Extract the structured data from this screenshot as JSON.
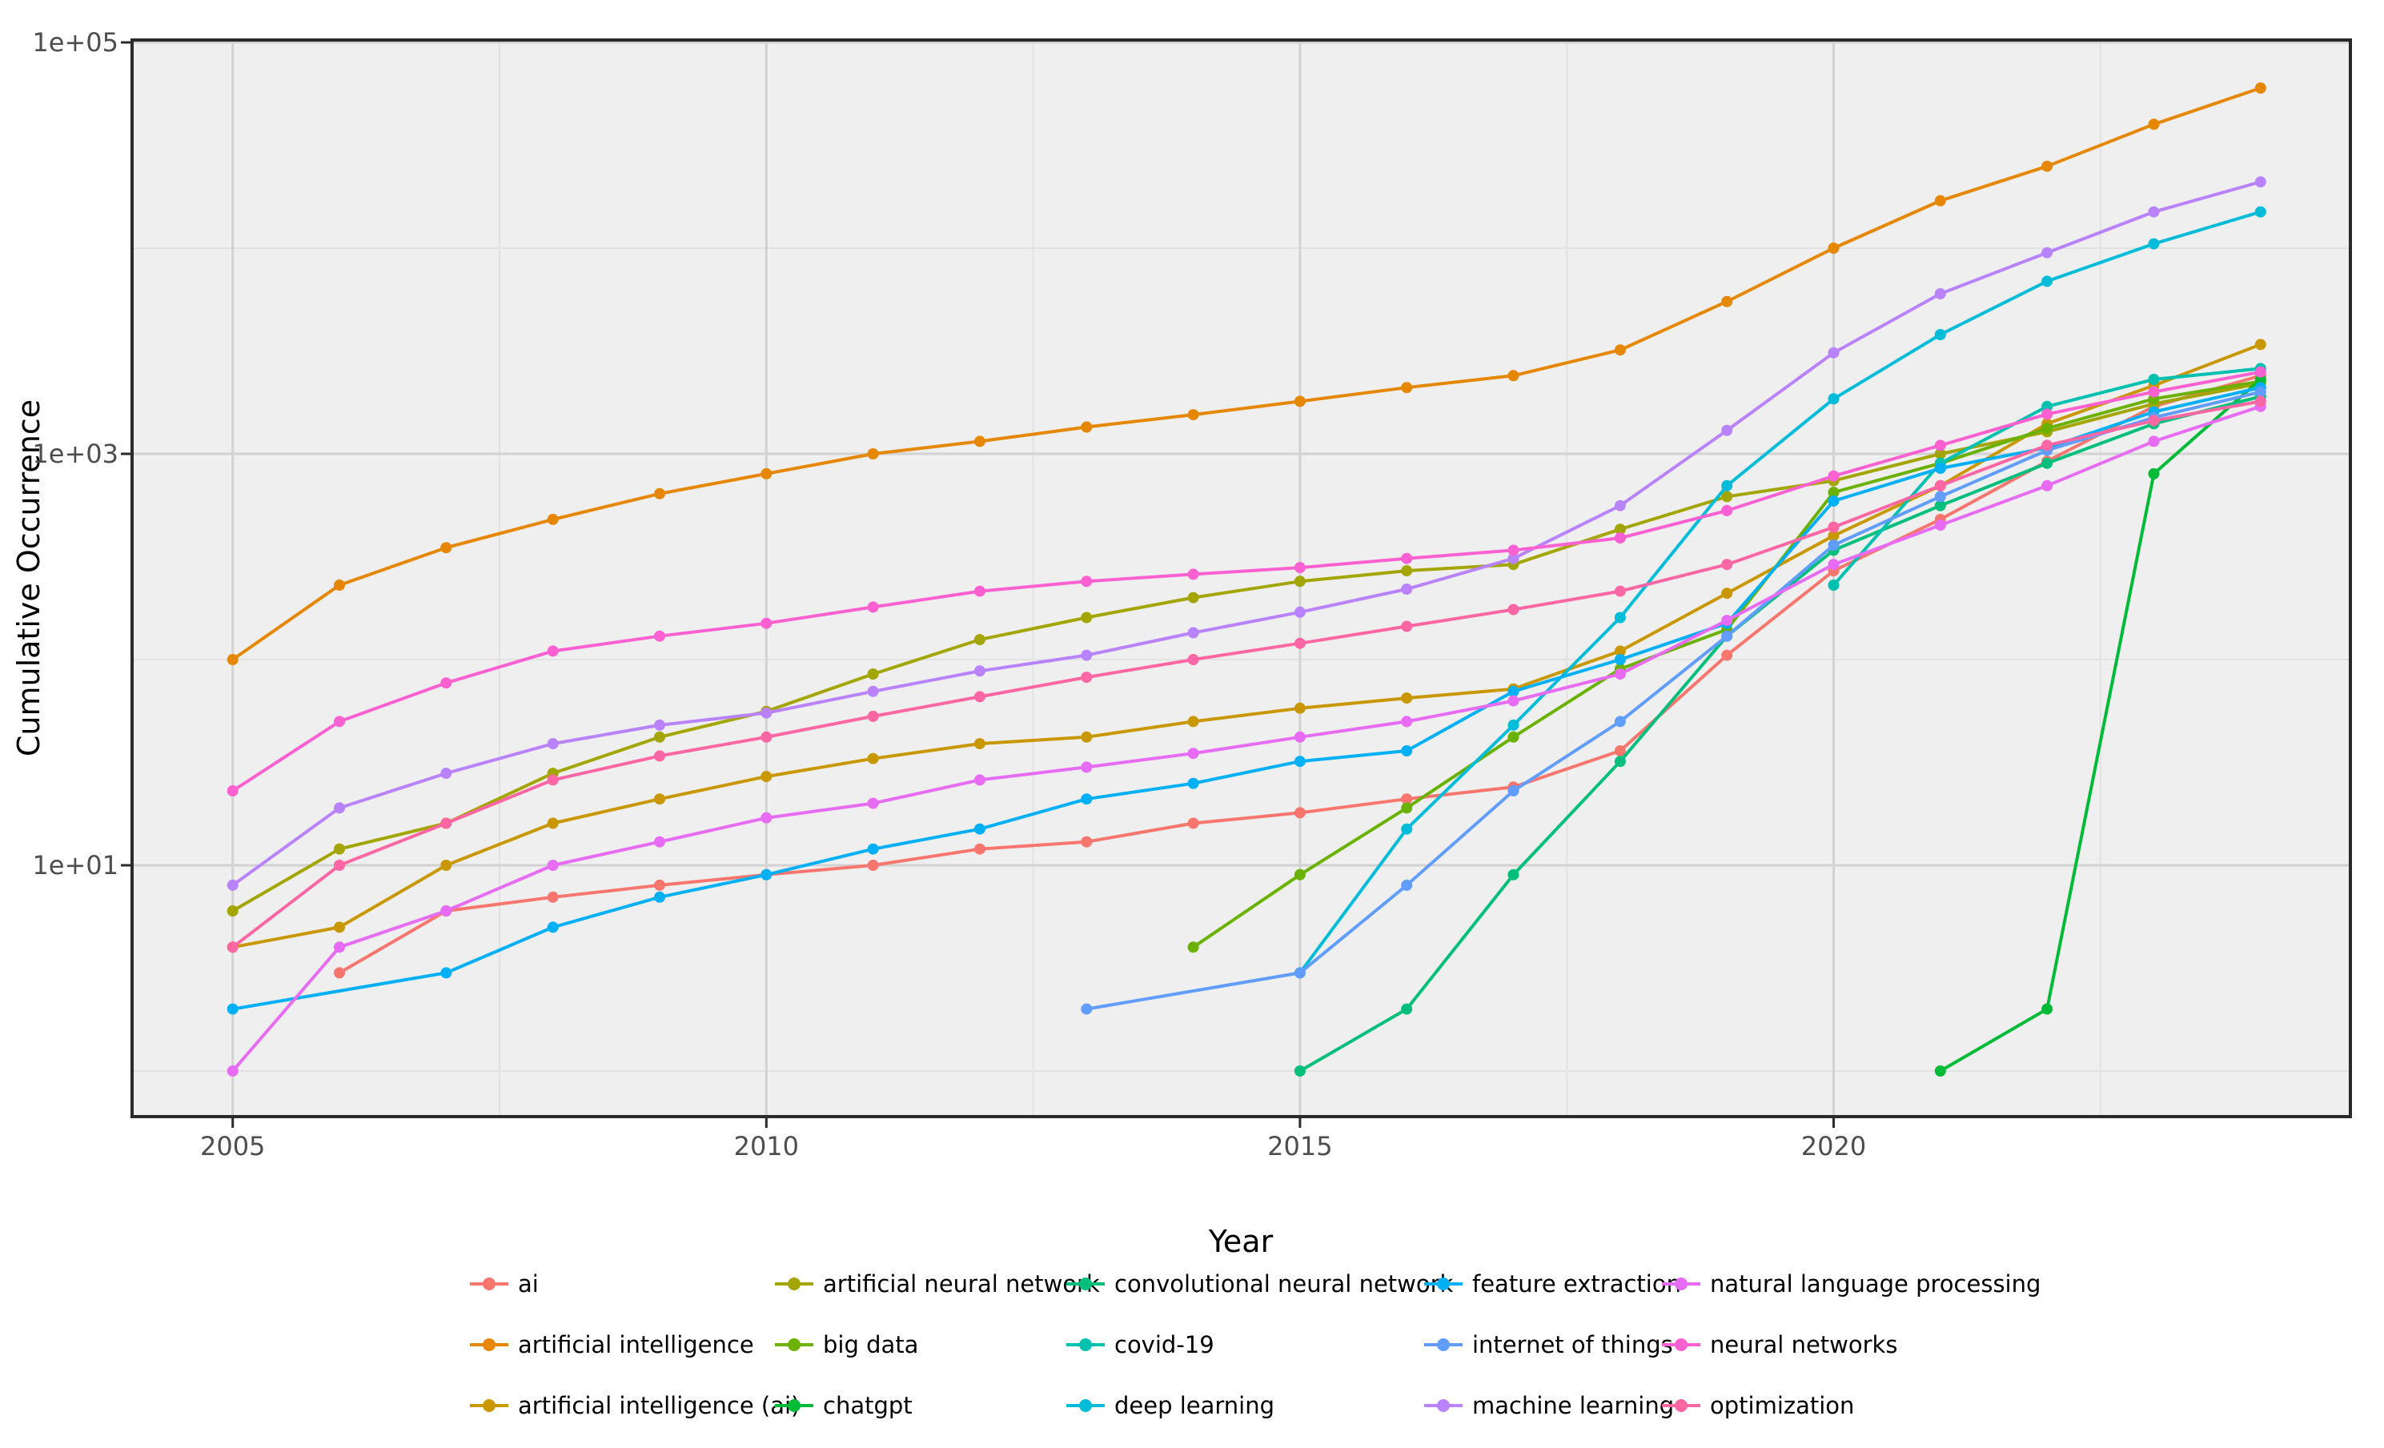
{
  "page": {
    "background": "#FFFFFF"
  },
  "chart_data": {
    "type": "line",
    "title": "",
    "xlabel": "Year",
    "ylabel": "Cumulative Occurrence",
    "y_scale": "log10",
    "grid": true,
    "legend_position": "bottom",
    "panel_background": "#EFEFEF",
    "grid_major_color": "#D2D2D2",
    "grid_minor_color": "#E2E2E2",
    "axis_color": "#2A2A2A",
    "tick_label_color": "#4D4D4D",
    "xlim": [
      2004.1,
      2024.95
    ],
    "x_ticks": [
      {
        "label": "2005",
        "value": 2005
      },
      {
        "label": "2010",
        "value": 2010
      },
      {
        "label": "2015",
        "value": 2015
      },
      {
        "label": "2020",
        "value": 2020
      }
    ],
    "x_minor_values": [
      2007.5,
      2012.5,
      2017.5,
      2022.5
    ],
    "y_ticks": [
      {
        "label": "1e+05",
        "value": 100000
      },
      {
        "label": "1e+03",
        "value": 1000
      },
      {
        "label": "1e+01",
        "value": 10
      }
    ],
    "y_minor_values": [
      10000,
      100,
      1
    ],
    "series": [
      {
        "name": "ai",
        "color": "#F8766D",
        "points": [
          [
            2006,
            3
          ],
          [
            2007,
            6
          ],
          [
            2008,
            7
          ],
          [
            2009,
            8
          ],
          [
            2010,
            9
          ],
          [
            2011,
            10
          ],
          [
            2012,
            12
          ],
          [
            2013,
            13
          ],
          [
            2014,
            16
          ],
          [
            2015,
            18
          ],
          [
            2016,
            21
          ],
          [
            2017,
            24
          ],
          [
            2018,
            36
          ],
          [
            2019,
            105
          ],
          [
            2020,
            270
          ],
          [
            2021,
            480
          ],
          [
            2022,
            920
          ],
          [
            2023,
            1700
          ],
          [
            2024,
            2400
          ]
        ]
      },
      {
        "name": "artificial intelligence",
        "color": "#E58700",
        "points": [
          [
            2005,
            100
          ],
          [
            2006,
            230
          ],
          [
            2007,
            350
          ],
          [
            2008,
            480
          ],
          [
            2009,
            640
          ],
          [
            2010,
            800
          ],
          [
            2011,
            1000
          ],
          [
            2012,
            1150
          ],
          [
            2013,
            1350
          ],
          [
            2014,
            1550
          ],
          [
            2015,
            1800
          ],
          [
            2016,
            2100
          ],
          [
            2017,
            2400
          ],
          [
            2018,
            3200
          ],
          [
            2019,
            5500
          ],
          [
            2020,
            10000
          ],
          [
            2021,
            17000
          ],
          [
            2022,
            25000
          ],
          [
            2023,
            40000
          ],
          [
            2024,
            60000
          ]
        ]
      },
      {
        "name": "artificial intelligence (ai)",
        "color": "#C99800",
        "points": [
          [
            2005,
            4
          ],
          [
            2006,
            5
          ],
          [
            2007,
            10
          ],
          [
            2008,
            16
          ],
          [
            2009,
            21
          ],
          [
            2010,
            27
          ],
          [
            2011,
            33
          ],
          [
            2012,
            39
          ],
          [
            2013,
            42
          ],
          [
            2014,
            50
          ],
          [
            2015,
            58
          ],
          [
            2016,
            65
          ],
          [
            2017,
            72
          ],
          [
            2018,
            110
          ],
          [
            2019,
            210
          ],
          [
            2020,
            400
          ],
          [
            2021,
            700
          ],
          [
            2022,
            1400
          ],
          [
            2023,
            2150
          ],
          [
            2024,
            3400
          ]
        ]
      },
      {
        "name": "artificial neural network",
        "color": "#A3A500",
        "points": [
          [
            2005,
            6
          ],
          [
            2006,
            12
          ],
          [
            2007,
            16
          ],
          [
            2008,
            28
          ],
          [
            2009,
            42
          ],
          [
            2010,
            56
          ],
          [
            2011,
            85
          ],
          [
            2012,
            125
          ],
          [
            2013,
            160
          ],
          [
            2014,
            200
          ],
          [
            2015,
            240
          ],
          [
            2016,
            270
          ],
          [
            2017,
            290
          ],
          [
            2018,
            430
          ],
          [
            2019,
            620
          ],
          [
            2020,
            740
          ],
          [
            2021,
            1000
          ],
          [
            2022,
            1280
          ],
          [
            2023,
            1750
          ],
          [
            2024,
            2200
          ]
        ]
      },
      {
        "name": "big data",
        "color": "#6BB100",
        "points": [
          [
            2014,
            4
          ],
          [
            2015,
            9
          ],
          [
            2016,
            19
          ],
          [
            2017,
            42
          ],
          [
            2018,
            90
          ],
          [
            2019,
            140
          ],
          [
            2020,
            650
          ],
          [
            2021,
            900
          ],
          [
            2022,
            1330
          ],
          [
            2023,
            1850
          ],
          [
            2024,
            2250
          ]
        ]
      },
      {
        "name": "chatgpt",
        "color": "#00BA38",
        "points": [
          [
            2021,
            1
          ],
          [
            2022,
            2
          ],
          [
            2023,
            800
          ],
          [
            2024,
            2300
          ]
        ]
      },
      {
        "name": "convolutional neural network",
        "color": "#00BF7D",
        "points": [
          [
            2015,
            1
          ],
          [
            2016,
            2
          ],
          [
            2017,
            9
          ],
          [
            2018,
            32
          ],
          [
            2019,
            130
          ],
          [
            2020,
            340
          ],
          [
            2021,
            560
          ],
          [
            2022,
            900
          ],
          [
            2023,
            1400
          ],
          [
            2024,
            1900
          ]
        ]
      },
      {
        "name": "covid-19",
        "color": "#00C0AF",
        "points": [
          [
            2020,
            230
          ],
          [
            2021,
            900
          ],
          [
            2022,
            1700
          ],
          [
            2023,
            2300
          ],
          [
            2024,
            2600
          ]
        ]
      },
      {
        "name": "deep learning",
        "color": "#00BCD8",
        "points": [
          [
            2015,
            3
          ],
          [
            2016,
            15
          ],
          [
            2017,
            48
          ],
          [
            2018,
            160
          ],
          [
            2019,
            700
          ],
          [
            2020,
            1850
          ],
          [
            2021,
            3800
          ],
          [
            2022,
            6900
          ],
          [
            2023,
            10500
          ],
          [
            2024,
            15000
          ]
        ]
      },
      {
        "name": "feature extraction",
        "color": "#00B0F6",
        "points": [
          [
            2005,
            2
          ],
          [
            2007,
            3
          ],
          [
            2008,
            5
          ],
          [
            2009,
            7
          ],
          [
            2010,
            9
          ],
          [
            2011,
            12
          ],
          [
            2012,
            15
          ],
          [
            2013,
            21
          ],
          [
            2014,
            25
          ],
          [
            2015,
            32
          ],
          [
            2016,
            36
          ],
          [
            2017,
            70
          ],
          [
            2018,
            100
          ],
          [
            2019,
            150
          ],
          [
            2020,
            590
          ],
          [
            2021,
            850
          ],
          [
            2022,
            1070
          ],
          [
            2023,
            1600
          ],
          [
            2024,
            2100
          ]
        ]
      },
      {
        "name": "internet of things",
        "color": "#619CFF",
        "points": [
          [
            2013,
            2
          ],
          [
            2015,
            3
          ],
          [
            2016,
            8
          ],
          [
            2017,
            23
          ],
          [
            2018,
            50
          ],
          [
            2019,
            130
          ],
          [
            2020,
            360
          ],
          [
            2021,
            620
          ],
          [
            2022,
            1040
          ],
          [
            2023,
            1500
          ],
          [
            2024,
            2000
          ]
        ]
      },
      {
        "name": "machine learning",
        "color": "#B983FF",
        "points": [
          [
            2005,
            8
          ],
          [
            2006,
            19
          ],
          [
            2007,
            28
          ],
          [
            2008,
            39
          ],
          [
            2009,
            48
          ],
          [
            2010,
            55
          ],
          [
            2011,
            70
          ],
          [
            2012,
            88
          ],
          [
            2013,
            105
          ],
          [
            2014,
            135
          ],
          [
            2015,
            170
          ],
          [
            2016,
            220
          ],
          [
            2017,
            310
          ],
          [
            2018,
            560
          ],
          [
            2019,
            1300
          ],
          [
            2020,
            3100
          ],
          [
            2021,
            6000
          ],
          [
            2022,
            9500
          ],
          [
            2023,
            15000
          ],
          [
            2024,
            21000
          ]
        ]
      },
      {
        "name": "natural language processing",
        "color": "#E76BF3",
        "points": [
          [
            2005,
            1
          ],
          [
            2006,
            4
          ],
          [
            2007,
            6
          ],
          [
            2008,
            10
          ],
          [
            2009,
            13
          ],
          [
            2010,
            17
          ],
          [
            2011,
            20
          ],
          [
            2012,
            26
          ],
          [
            2013,
            30
          ],
          [
            2014,
            35
          ],
          [
            2015,
            42
          ],
          [
            2016,
            50
          ],
          [
            2017,
            63
          ],
          [
            2018,
            85
          ],
          [
            2019,
            155
          ],
          [
            2020,
            290
          ],
          [
            2021,
            450
          ],
          [
            2022,
            700
          ],
          [
            2023,
            1150
          ],
          [
            2024,
            1700
          ]
        ]
      },
      {
        "name": "neural networks",
        "color": "#FD61D1",
        "points": [
          [
            2005,
            23
          ],
          [
            2006,
            50
          ],
          [
            2007,
            77
          ],
          [
            2008,
            110
          ],
          [
            2009,
            130
          ],
          [
            2010,
            150
          ],
          [
            2011,
            180
          ],
          [
            2012,
            215
          ],
          [
            2013,
            240
          ],
          [
            2014,
            260
          ],
          [
            2015,
            280
          ],
          [
            2016,
            310
          ],
          [
            2017,
            340
          ],
          [
            2018,
            390
          ],
          [
            2019,
            530
          ],
          [
            2020,
            780
          ],
          [
            2021,
            1100
          ],
          [
            2022,
            1560
          ],
          [
            2023,
            2000
          ],
          [
            2024,
            2500
          ]
        ]
      },
      {
        "name": "optimization",
        "color": "#FF67A4",
        "points": [
          [
            2005,
            4
          ],
          [
            2006,
            10
          ],
          [
            2007,
            16
          ],
          [
            2008,
            26
          ],
          [
            2009,
            34
          ],
          [
            2010,
            42
          ],
          [
            2011,
            53
          ],
          [
            2012,
            66
          ],
          [
            2013,
            82
          ],
          [
            2014,
            100
          ],
          [
            2015,
            120
          ],
          [
            2016,
            145
          ],
          [
            2017,
            175
          ],
          [
            2018,
            215
          ],
          [
            2019,
            290
          ],
          [
            2020,
            440
          ],
          [
            2021,
            700
          ],
          [
            2022,
            1100
          ],
          [
            2023,
            1450
          ],
          [
            2024,
            1800
          ]
        ]
      }
    ],
    "legend": {
      "columns": 5,
      "rows": 3,
      "items": [
        "ai",
        "artificial intelligence",
        "artificial intelligence (ai)",
        "artificial neural network",
        "big data",
        "chatgpt",
        "convolutional neural network",
        "covid-19",
        "deep learning",
        "feature extraction",
        "internet of things",
        "machine learning",
        "natural language processing",
        "neural networks",
        "optimization"
      ]
    }
  }
}
